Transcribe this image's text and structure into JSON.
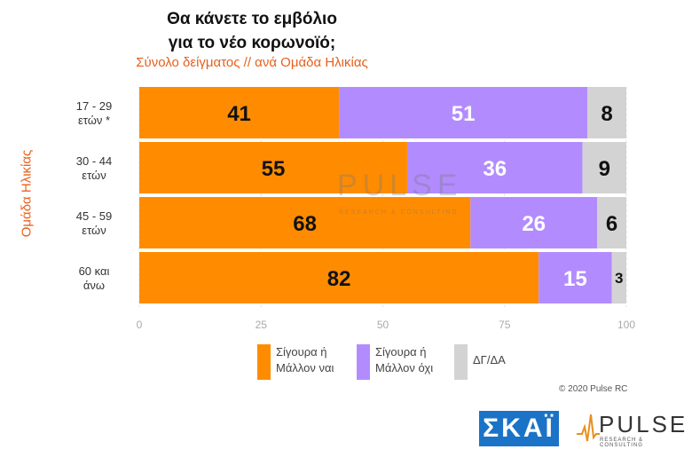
{
  "title_line1": "Θα κάνετε το εμβόλιο",
  "title_line2": "για το νέο κορωνοϊό;",
  "subtitle": "Σύνολο δείγματος // ανά Ομάδα Ηλικίας",
  "watermark": "PULSE",
  "watermark_sub": "RESEARCH & CONSULTING",
  "copyright": "© 2020 Pulse RC",
  "logos": {
    "skai": "ΣΚΑΪ",
    "pulse": "PULSE",
    "pulse_sub": "RESEARCH & CONSULTING"
  },
  "colors": {
    "yes": "#ff8c00",
    "no": "#b28cff",
    "dk": "#d3d3d3"
  },
  "chart_data": {
    "type": "bar",
    "orientation": "horizontal",
    "stacked": true,
    "ylabel": "Ομάδα Ηλικίας",
    "categories": [
      [
        "17 - 29",
        "ετών *"
      ],
      [
        "30 - 44",
        "ετών"
      ],
      [
        "45 - 59",
        "ετών"
      ],
      [
        "60 και",
        "άνω"
      ]
    ],
    "series": [
      {
        "name": "Σίγουρα ή Μάλλον ναι",
        "legend_lines": [
          "Σίγουρα ή",
          "Μάλλον ναι"
        ],
        "color": "#ff8c00",
        "values": [
          41,
          55,
          68,
          82
        ]
      },
      {
        "name": "Σίγουρα ή Μάλλον όχι",
        "legend_lines": [
          "Σίγουρα ή",
          "Μάλλον όχι"
        ],
        "color": "#b28cff",
        "values": [
          51,
          36,
          26,
          15
        ]
      },
      {
        "name": "ΔΓ/ΔΑ",
        "legend_lines": [
          "ΔΓ/ΔΑ"
        ],
        "color": "#d3d3d3",
        "values": [
          8,
          9,
          6,
          3
        ]
      }
    ],
    "xlim": [
      0,
      100
    ],
    "xticks": [
      0,
      25,
      50,
      75,
      100
    ],
    "grid": true,
    "legend": "bottom"
  }
}
